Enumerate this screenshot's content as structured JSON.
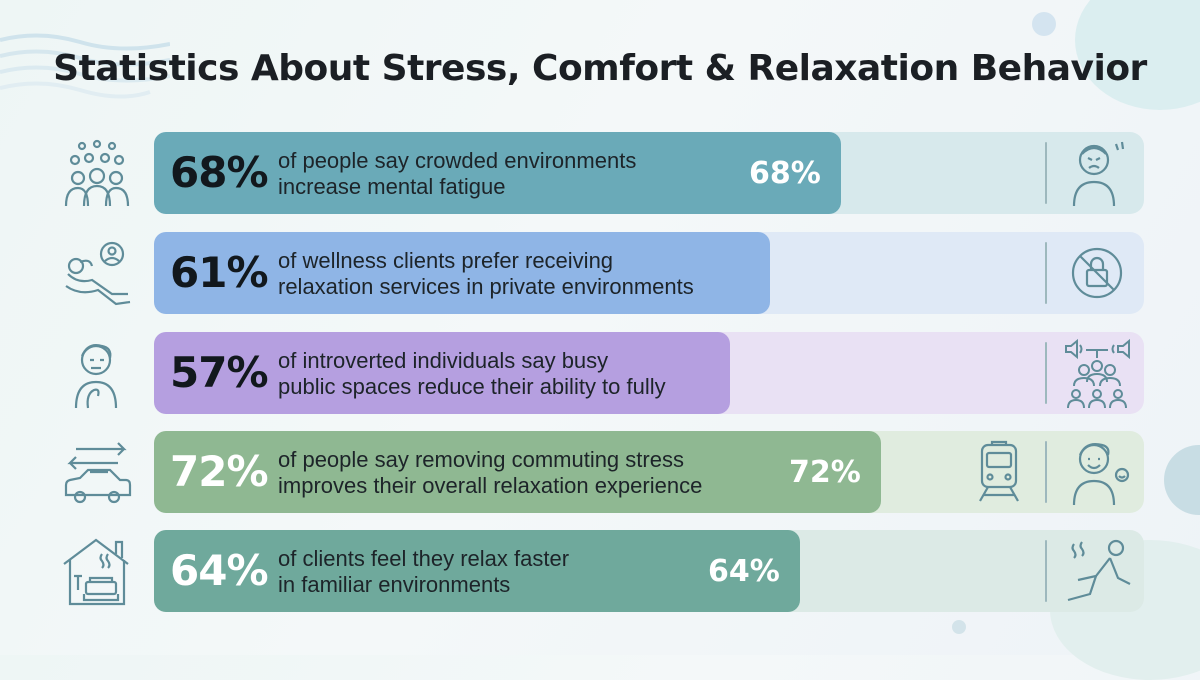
{
  "title": "Statistics About Stress, Comfort & Relaxation Behavior",
  "colors": {
    "teal": "#6aaab8",
    "blue": "#8fb5e6",
    "purple": "#b59fe0",
    "green": "#8fb892",
    "sea": "#6fa99c",
    "ink": "#1b1f24"
  },
  "chart_data": {
    "type": "bar",
    "orientation": "horizontal",
    "categories": [
      "of people say crowded environments increase mental fatigue",
      "of wellness clients prefer receiving relaxation services in private environments",
      "of introverted individuals say busy public spaces reduce their ability to fully",
      "of people say removing commuting stress improves their overall relaxation experience",
      "of clients feel they relax faster in familiar environments"
    ],
    "values": [
      68,
      61,
      57,
      72,
      64
    ],
    "xlim": [
      0,
      100
    ],
    "unit": "%"
  },
  "rows": [
    {
      "pct": "68%",
      "desc_line1": "of people say crowded environments",
      "desc_line2": "increase mental fatigue",
      "bar_label": "68%",
      "left_icon": "crowd-icon",
      "right_icon": "stressed-person-icon",
      "bar_color": "#6aaab8",
      "track_color": "#d7e9ec"
    },
    {
      "pct": "61%",
      "desc_line1": "of wellness clients prefer receiving",
      "desc_line2": "relaxation services in private environments",
      "bar_label": "",
      "left_icon": "reclining-person-icon",
      "right_icon": "no-lock-icon",
      "bar_color": "#8fb5e6",
      "track_color": "#dfe9f6"
    },
    {
      "pct": "57%",
      "desc_line1": "of introverted individuals say busy",
      "desc_line2": "public spaces reduce their ability to fully",
      "bar_label": "",
      "left_icon": "thinking-person-icon",
      "right_icon": "noisy-crowd-icon",
      "bar_color": "#b59fe0",
      "track_color": "#e9e1f4"
    },
    {
      "pct": "72%",
      "desc_line1": "of people say removing commuting stress",
      "desc_line2": "improves their overall relaxation experience",
      "bar_label": "72%",
      "left_icon": "car-commute-icon",
      "right_icon": "happy-person-icon",
      "mid_icon": "train-icon",
      "bar_color": "#8fb892",
      "track_color": "#e0ecdf"
    },
    {
      "pct": "64%",
      "desc_line1": "of clients feel they relax faster",
      "desc_line2": "in familiar environments",
      "bar_label": "64%",
      "left_icon": "home-couch-icon",
      "right_icon": "relaxing-person-icon",
      "bar_color": "#6fa99c",
      "track_color": "#dceae6"
    }
  ]
}
